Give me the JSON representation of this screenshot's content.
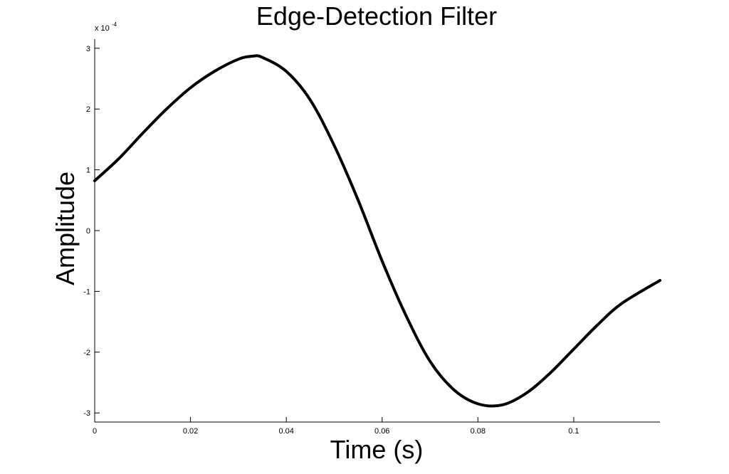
{
  "chart_data": {
    "type": "line",
    "title": "Edge-Detection Filter",
    "xlabel": "Time (s)",
    "ylabel": "Amplitude",
    "y_multiplier": {
      "base": "x 10",
      "exponent": "-4"
    },
    "xlim": [
      0,
      0.118
    ],
    "ylim": [
      -3.15,
      3.15
    ],
    "x_ticks": [
      0,
      0.02,
      0.04,
      0.06,
      0.08,
      0.1
    ],
    "x_tick_labels": [
      "0",
      "0.02",
      "0.04",
      "0.06",
      "0.08",
      "0.1"
    ],
    "y_ticks": [
      -3,
      -2,
      -1,
      0,
      1,
      2,
      3
    ],
    "y_tick_labels": [
      "-3",
      "-2",
      "-1",
      "0",
      "1",
      "2",
      "3"
    ],
    "grid": false,
    "series": [
      {
        "x": [
          0,
          0.005,
          0.01,
          0.015,
          0.02,
          0.025,
          0.03,
          0.033,
          0.035,
          0.04,
          0.045,
          0.05,
          0.055,
          0.06,
          0.065,
          0.07,
          0.075,
          0.08,
          0.085,
          0.09,
          0.095,
          0.1,
          0.105,
          0.11,
          0.118
        ],
        "y": [
          0.82,
          1.18,
          1.6,
          2.0,
          2.35,
          2.62,
          2.82,
          2.87,
          2.85,
          2.62,
          2.15,
          1.4,
          0.5,
          -0.5,
          -1.4,
          -2.15,
          -2.62,
          -2.85,
          -2.87,
          -2.68,
          -2.35,
          -1.95,
          -1.55,
          -1.2,
          -0.82
        ]
      }
    ]
  }
}
